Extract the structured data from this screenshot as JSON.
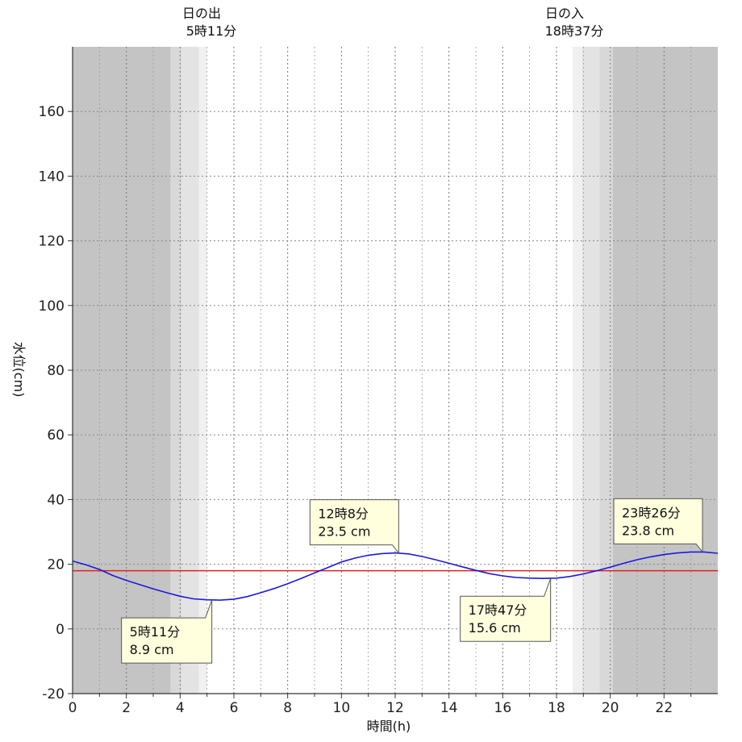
{
  "chart_data": {
    "type": "line",
    "xlabel": "時間(h)",
    "ylabel": "水位(cm)",
    "xlim": [
      0,
      24
    ],
    "ylim": [
      -20,
      180
    ],
    "x_ticks": [
      0,
      2,
      4,
      6,
      8,
      10,
      12,
      14,
      16,
      18,
      20,
      22
    ],
    "y_ticks": [
      -20,
      0,
      20,
      40,
      60,
      80,
      100,
      120,
      140,
      160
    ],
    "grid": true,
    "sunrise": {
      "label": "日の出",
      "time_text": "5時11分"
    },
    "sunset": {
      "label": "日の入",
      "time_text": "18時37分"
    },
    "twilight_bands": [
      {
        "from": 0,
        "to": 3.65,
        "color": "#c4c4c4"
      },
      {
        "from": 3.65,
        "to": 4.05,
        "color": "#d8d8d8"
      },
      {
        "from": 4.05,
        "to": 4.7,
        "color": "#e3e3e3"
      },
      {
        "from": 4.7,
        "to": 5.0,
        "color": "#f0f0f0"
      },
      {
        "from": 18.6,
        "to": 18.95,
        "color": "#f0f0f0"
      },
      {
        "from": 18.95,
        "to": 19.6,
        "color": "#e3e3e3"
      },
      {
        "from": 19.6,
        "to": 20.1,
        "color": "#d8d8d8"
      },
      {
        "from": 20.1,
        "to": 24,
        "color": "#c4c4c4"
      }
    ],
    "reference_line": {
      "y": 18,
      "color": "#e02020"
    },
    "series": [
      {
        "color": "#1a1adf",
        "x": [
          0,
          0.5,
          1,
          1.5,
          2,
          2.5,
          3,
          3.5,
          4,
          4.5,
          5,
          5.5,
          6,
          6.5,
          7,
          7.5,
          8,
          8.5,
          9,
          9.5,
          10,
          10.5,
          11,
          11.5,
          12,
          12.5,
          13,
          13.5,
          14,
          14.5,
          15,
          15.5,
          16,
          16.5,
          17,
          17.5,
          18,
          18.5,
          19,
          19.5,
          20,
          20.5,
          21,
          21.5,
          22,
          22.5,
          23,
          23.5,
          24
        ],
        "values": [
          21.0,
          19.8,
          18.4,
          16.5,
          15.0,
          13.7,
          12.4,
          11.2,
          10.1,
          9.3,
          9.0,
          8.9,
          9.2,
          10.0,
          11.2,
          12.5,
          14.0,
          15.6,
          17.3,
          19.0,
          20.7,
          21.9,
          22.8,
          23.3,
          23.5,
          23.2,
          22.4,
          21.4,
          20.3,
          19.2,
          18.1,
          17.1,
          16.4,
          15.9,
          15.7,
          15.6,
          15.7,
          16.2,
          17.0,
          18.0,
          19.1,
          20.3,
          21.4,
          22.3,
          23.0,
          23.5,
          23.8,
          23.8,
          23.4
        ]
      }
    ],
    "annotations": [
      {
        "time_text": "5時11分",
        "value_text": "8.9 cm",
        "x": 5.18,
        "y": 8.9
      },
      {
        "time_text": "12時8分",
        "value_text": "23.5 cm",
        "x": 12.13,
        "y": 23.5
      },
      {
        "time_text": "17時47分",
        "value_text": "15.6 cm",
        "x": 17.78,
        "y": 15.6
      },
      {
        "time_text": "23時26分",
        "value_text": "23.8 cm",
        "x": 23.43,
        "y": 23.8
      }
    ]
  }
}
